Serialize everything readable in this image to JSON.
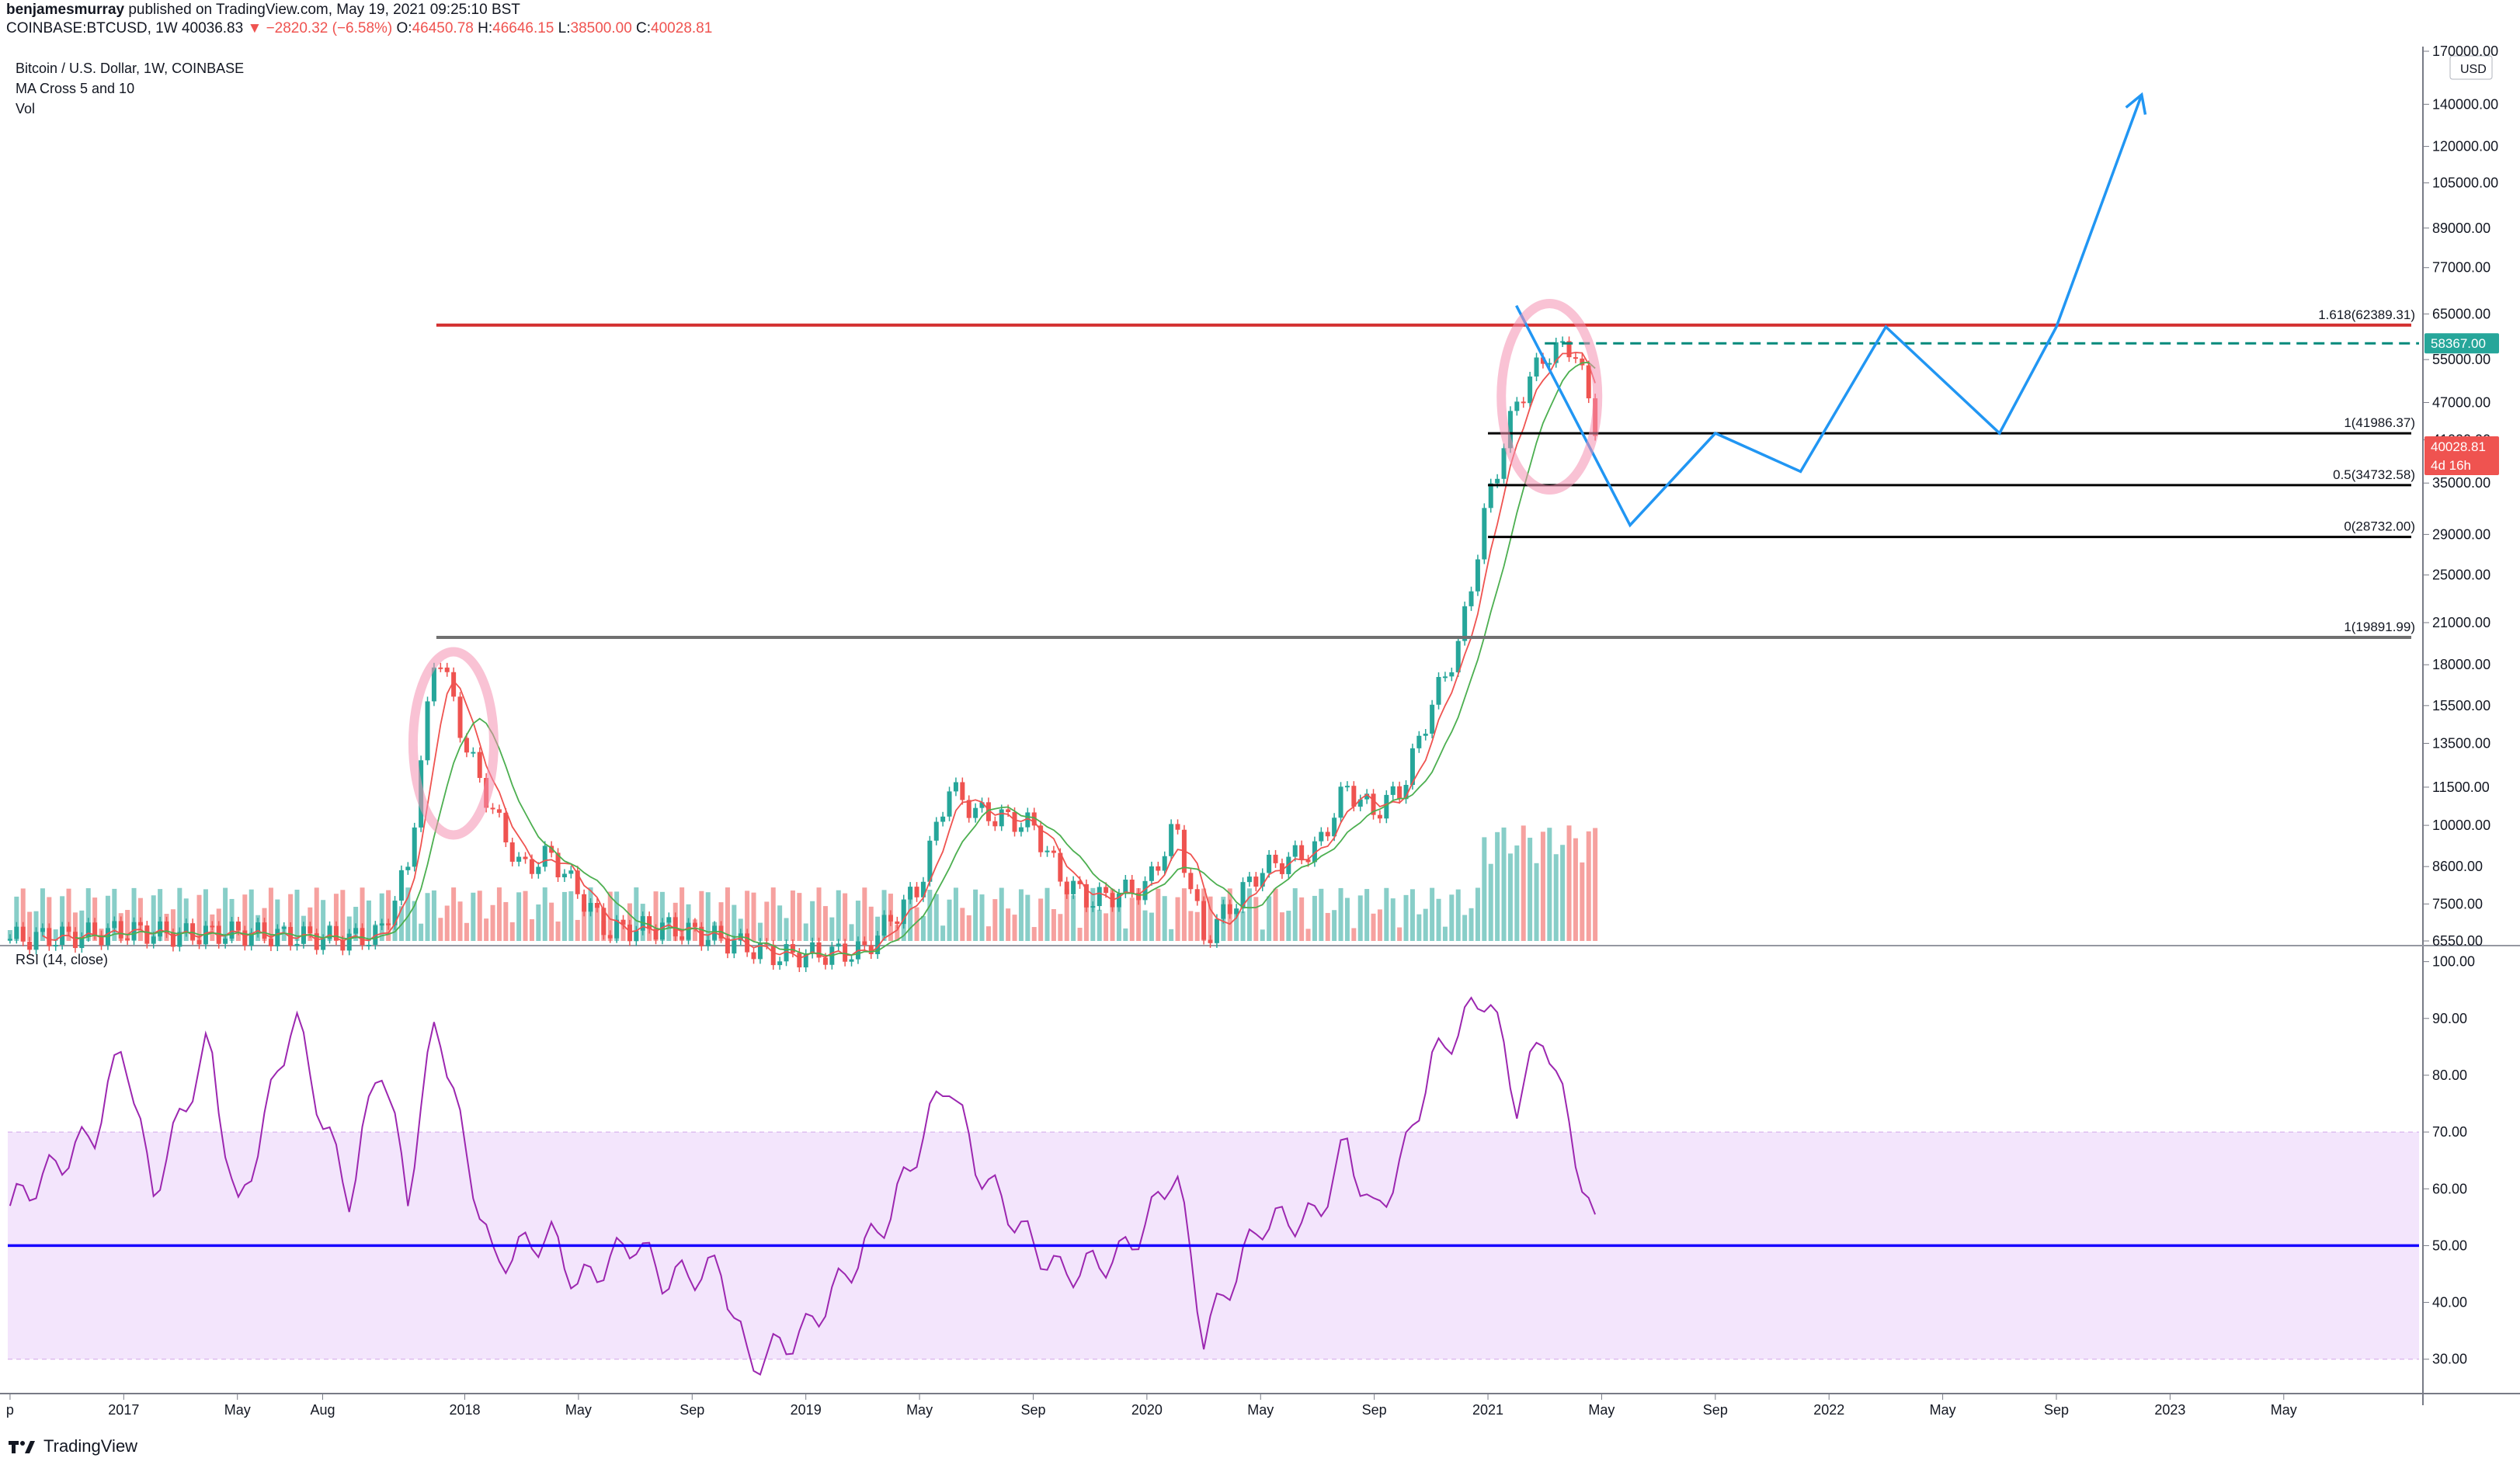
{
  "header": {
    "publisher_user": "benjamesmurray",
    "publisher_text": "published on TradingView.com, May 19, 2021 09:25:10 BST",
    "symbol_line": "COINBASE:BTCUSD, 1W",
    "price": "40036.83",
    "change_arrow": "▼",
    "change": "−2820.32 (−6.58%)",
    "o_label": "O:",
    "o_val": "46450.78",
    "h_label": "H:",
    "h_val": "46646.15",
    "l_label": "L:",
    "l_val": "38500.00",
    "c_label": "C:",
    "c_val": "40028.81"
  },
  "legend": {
    "title": "Bitcoin / U.S. Dollar, 1W, COINBASE",
    "indicator1": "MA Cross 5 and 10",
    "indicator2": "Vol",
    "rsi": "RSI (14, close)"
  },
  "footer": {
    "brand": "TradingView",
    "logo_icon": "tradingview-logo-icon"
  },
  "colors": {
    "up": "#26a69a",
    "down": "#ef5350",
    "ma_fast": "#ef5350",
    "ma_slow": "#4caf50",
    "resistance": "#d32f2f",
    "projection": "#2196f3",
    "rsi_line": "#9c27b0",
    "rsi_mid": "#1500ff",
    "rsi_band": "#f3e5fc",
    "circle": "#f48fb1",
    "fib": "#000000"
  },
  "chart_data": [
    {
      "type": "line",
      "title": "Bitcoin / U.S. Dollar, 1W, COINBASE",
      "scale": "log",
      "currency": "USD",
      "y_ticks": [
        "170000.00",
        "140000.00",
        "120000.00",
        "105000.00",
        "89000.00",
        "77000.00",
        "65000.00",
        "55000.00",
        "47000.00",
        "41000.00",
        "35000.00",
        "29000.00",
        "25000.00",
        "21000.00",
        "18000.00",
        "15500.00",
        "13500.00",
        "11500.00",
        "10000.00",
        "8600.00",
        "7500.00",
        "6550.00"
      ],
      "x_ticks": [
        "p",
        "2017",
        "May",
        "Aug",
        "2018",
        "May",
        "Sep",
        "2019",
        "May",
        "Sep",
        "2020",
        "May",
        "Sep",
        "2021",
        "May",
        "Sep",
        "2022",
        "May",
        "Sep",
        "2023",
        "May"
      ],
      "price_path": [
        {
          "x": "2016-09",
          "y": 6600
        },
        {
          "x": "2016-11",
          "y": 6650
        },
        {
          "x": "2017-01",
          "y": 6800
        },
        {
          "x": "2017-03",
          "y": 6700
        },
        {
          "x": "2017-05",
          "y": 6750
        },
        {
          "x": "2017-07",
          "y": 6650
        },
        {
          "x": "2017-09",
          "y": 6600
        },
        {
          "x": "2017-10",
          "y": 6700
        },
        {
          "x": "2017-11",
          "y": 8600
        },
        {
          "x": "2017-12",
          "y": 19500
        },
        {
          "x": "2018-01",
          "y": 13500
        },
        {
          "x": "2018-02",
          "y": 10500
        },
        {
          "x": "2018-03",
          "y": 8500
        },
        {
          "x": "2018-04",
          "y": 9000
        },
        {
          "x": "2018-06",
          "y": 6800
        },
        {
          "x": "2018-08",
          "y": 6900
        },
        {
          "x": "2018-10",
          "y": 6600
        },
        {
          "x": "2018-11",
          "y": 6400
        },
        {
          "x": "2018-12",
          "y": 6200
        },
        {
          "x": "2019-03",
          "y": 6300
        },
        {
          "x": "2019-05",
          "y": 8000
        },
        {
          "x": "2019-06",
          "y": 11500
        },
        {
          "x": "2019-07",
          "y": 10500
        },
        {
          "x": "2019-09",
          "y": 10000
        },
        {
          "x": "2019-10",
          "y": 8200
        },
        {
          "x": "2019-11",
          "y": 7600
        },
        {
          "x": "2020-01",
          "y": 8000
        },
        {
          "x": "2020-02",
          "y": 10000
        },
        {
          "x": "2020-03",
          "y": 6600
        },
        {
          "x": "2020-05",
          "y": 8500
        },
        {
          "x": "2020-07",
          "y": 9200
        },
        {
          "x": "2020-08",
          "y": 11500
        },
        {
          "x": "2020-09",
          "y": 10500
        },
        {
          "x": "2020-10",
          "y": 11500
        },
        {
          "x": "2020-11",
          "y": 15500
        },
        {
          "x": "2020-12",
          "y": 19500
        },
        {
          "x": "2021-01",
          "y": 33000
        },
        {
          "x": "2021-02",
          "y": 47000
        },
        {
          "x": "2021-03",
          "y": 56000
        },
        {
          "x": "2021-04",
          "y": 58000
        },
        {
          "x": "2021-05",
          "y": 40028.81
        }
      ],
      "price_labels": [
        {
          "label": "58367.00",
          "color": "#26a69a"
        },
        {
          "label": "40028.81",
          "sublabel": "4d 16h",
          "color": "#ef5350"
        }
      ],
      "resistance": {
        "label": "1.618(62389.31)",
        "value": 62389.31
      },
      "fib_levels": [
        {
          "label": "1(41986.37)",
          "value": 41986.37
        },
        {
          "label": "0.5(34732.58)",
          "value": 34732.58
        },
        {
          "label": "0(28732.00)",
          "value": 28732.0
        }
      ],
      "previous_high": {
        "label": "1(19891.99)",
        "value": 19891.99
      },
      "dashed_level": {
        "value": 58367.0
      },
      "projection": [
        {
          "x": "2021-02",
          "y": 67000
        },
        {
          "x": "2021-06",
          "y": 30000
        },
        {
          "x": "2021-09",
          "y": 42000
        },
        {
          "x": "2021-12",
          "y": 36500
        },
        {
          "x": "2022-03",
          "y": 62000
        },
        {
          "x": "2022-07",
          "y": 42000
        },
        {
          "x": "2022-09",
          "y": 62000
        },
        {
          "x": "2022-12",
          "y": 145000
        }
      ]
    },
    {
      "type": "line",
      "title": "RSI (14, close)",
      "ylim": [
        25,
        100
      ],
      "y_ticks": [
        "100.00",
        "90.00",
        "80.00",
        "70.00",
        "60.00",
        "50.00",
        "40.00",
        "30.00"
      ],
      "band": [
        30,
        70
      ],
      "midline": 50,
      "rsi": [
        {
          "x": "2016-09",
          "y": 57
        },
        {
          "x": "2016-12",
          "y": 70
        },
        {
          "x": "2017-01",
          "y": 86
        },
        {
          "x": "2017-02",
          "y": 59
        },
        {
          "x": "2017-04",
          "y": 86
        },
        {
          "x": "2017-05",
          "y": 55
        },
        {
          "x": "2017-07",
          "y": 91
        },
        {
          "x": "2017-08",
          "y": 72
        },
        {
          "x": "2017-09",
          "y": 58
        },
        {
          "x": "2017-10",
          "y": 84
        },
        {
          "x": "2017-11",
          "y": 59
        },
        {
          "x": "2017-12",
          "y": 91
        },
        {
          "x": "2018-01",
          "y": 67
        },
        {
          "x": "2018-02",
          "y": 47
        },
        {
          "x": "2018-04",
          "y": 52
        },
        {
          "x": "2018-05",
          "y": 43
        },
        {
          "x": "2018-07",
          "y": 51
        },
        {
          "x": "2018-08",
          "y": 44
        },
        {
          "x": "2018-10",
          "y": 46
        },
        {
          "x": "2018-11",
          "y": 29
        },
        {
          "x": "2019-01",
          "y": 35
        },
        {
          "x": "2019-04",
          "y": 56
        },
        {
          "x": "2019-06",
          "y": 80
        },
        {
          "x": "2019-07",
          "y": 64
        },
        {
          "x": "2019-09",
          "y": 50
        },
        {
          "x": "2019-10",
          "y": 45
        },
        {
          "x": "2019-12",
          "y": 48
        },
        {
          "x": "2020-01",
          "y": 54
        },
        {
          "x": "2020-02",
          "y": 64
        },
        {
          "x": "2020-03",
          "y": 34
        },
        {
          "x": "2020-05",
          "y": 54
        },
        {
          "x": "2020-07",
          "y": 55
        },
        {
          "x": "2020-08",
          "y": 68
        },
        {
          "x": "2020-09",
          "y": 55
        },
        {
          "x": "2020-10",
          "y": 65
        },
        {
          "x": "2020-11",
          "y": 82
        },
        {
          "x": "2021-01",
          "y": 95
        },
        {
          "x": "2021-02",
          "y": 75
        },
        {
          "x": "2021-03",
          "y": 88
        },
        {
          "x": "2021-04",
          "y": 68
        },
        {
          "x": "2021-05",
          "y": 48
        }
      ]
    }
  ]
}
